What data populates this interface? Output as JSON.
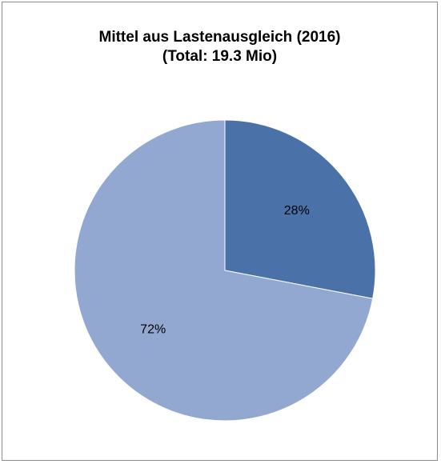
{
  "chart_data": {
    "type": "pie",
    "title": "Mittel aus Lastenausgleich (2016)",
    "subtitle": "(Total: 19.3 Mio)",
    "slices": [
      {
        "value": 28,
        "label": "28%",
        "color": "#4a72a8"
      },
      {
        "value": 72,
        "label": "72%",
        "color": "#93a8d0"
      }
    ],
    "start_angle": "12 o'clock",
    "direction": "clockwise",
    "legend": "none"
  }
}
